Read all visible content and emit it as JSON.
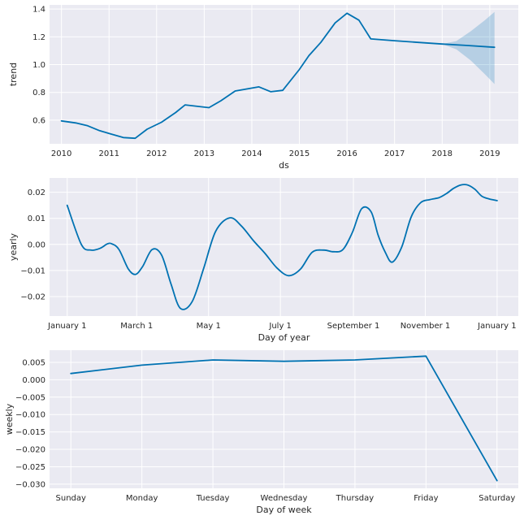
{
  "chart_data": [
    {
      "type": "line",
      "xlabel": "ds",
      "ylabel": "trend",
      "x_ticks": [
        "2010",
        "2011",
        "2012",
        "2013",
        "2014",
        "2015",
        "2016",
        "2017",
        "2018",
        "2019"
      ],
      "y_ticks": [
        "0.6",
        "0.8",
        "1.0",
        "1.2",
        "1.4"
      ],
      "xlim": [
        2009.75,
        2019.6
      ],
      "ylim": [
        0.43,
        1.43
      ],
      "grid": true,
      "color": "#0072b2",
      "x": [
        2010.0,
        2010.3,
        2010.55,
        2010.8,
        2011.0,
        2011.3,
        2011.55,
        2011.8,
        2012.1,
        2012.4,
        2012.6,
        2013.1,
        2013.35,
        2013.65,
        2014.15,
        2014.4,
        2014.65,
        2015.0,
        2015.2,
        2015.45,
        2015.75,
        2016.0,
        2016.25,
        2016.5,
        2017.0,
        2017.5,
        2018.0,
        2018.5,
        2019.1
      ],
      "y": [
        0.595,
        0.58,
        0.56,
        0.525,
        0.505,
        0.475,
        0.47,
        0.535,
        0.585,
        0.655,
        0.71,
        0.69,
        0.74,
        0.81,
        0.84,
        0.805,
        0.815,
        0.965,
        1.065,
        1.16,
        1.3,
        1.37,
        1.32,
        1.185,
        1.172,
        1.16,
        1.148,
        1.138,
        1.125
      ],
      "band": {
        "x": [
          2018.0,
          2018.3,
          2018.6,
          2018.9,
          2019.1
        ],
        "lower": [
          1.148,
          1.11,
          1.03,
          0.93,
          0.86
        ],
        "upper": [
          1.148,
          1.17,
          1.24,
          1.32,
          1.38
        ]
      }
    },
    {
      "type": "line",
      "xlabel": "Day of year",
      "ylabel": "yearly",
      "x_ticks": [
        "January 1",
        "March 1",
        "May 1",
        "July 1",
        "September 1",
        "November 1",
        "January 1"
      ],
      "x_tick_values": [
        0,
        59,
        120,
        181,
        243,
        304,
        365
      ],
      "y_ticks": [
        "−0.02",
        "−0.01",
        "0.00",
        "0.01",
        "0.02"
      ],
      "y_tick_values": [
        -0.02,
        -0.01,
        0.0,
        0.01,
        0.02
      ],
      "xlim": [
        -15,
        383
      ],
      "ylim": [
        -0.0275,
        0.0255
      ],
      "grid": true,
      "color": "#0072b2",
      "x": [
        0,
        12,
        20,
        28,
        34,
        38,
        44,
        52,
        58,
        64,
        72,
        80,
        88,
        96,
        106,
        116,
        126,
        138,
        148,
        158,
        168,
        178,
        188,
        198,
        208,
        218,
        226,
        234,
        242,
        250,
        258,
        264,
        270,
        276,
        284,
        292,
        300,
        308,
        316,
        322,
        328,
        334,
        340,
        346,
        352,
        358,
        365
      ],
      "y": [
        0.015,
        0.0,
        -0.0022,
        -0.0015,
        0.0002,
        0.0002,
        -0.002,
        -0.0095,
        -0.0115,
        -0.0085,
        -0.002,
        -0.004,
        -0.015,
        -0.0245,
        -0.022,
        -0.009,
        0.005,
        0.0102,
        0.007,
        0.0015,
        -0.0035,
        -0.009,
        -0.012,
        -0.0095,
        -0.003,
        -0.0022,
        -0.0028,
        -0.002,
        0.0045,
        0.0137,
        0.0125,
        0.0035,
        -0.003,
        -0.0068,
        -0.001,
        0.0105,
        0.016,
        0.0172,
        0.018,
        0.0195,
        0.0215,
        0.0228,
        0.0228,
        0.0212,
        0.0185,
        0.0175,
        0.0168
      ]
    },
    {
      "type": "line",
      "xlabel": "Day of week",
      "ylabel": "weekly",
      "categories": [
        "Sunday",
        "Monday",
        "Tuesday",
        "Wednesday",
        "Thursday",
        "Friday",
        "Saturday"
      ],
      "values": [
        0.0018,
        0.0042,
        0.0057,
        0.0053,
        0.0057,
        0.0068,
        -0.029
      ],
      "y_ticks": [
        "0.005",
        "0.000",
        "−0.005",
        "−0.010",
        "−0.015",
        "−0.020",
        "−0.025",
        "−0.030"
      ],
      "y_tick_values": [
        0.005,
        0.0,
        -0.005,
        -0.01,
        -0.015,
        -0.02,
        -0.025,
        -0.03
      ],
      "xlim": [
        -0.3,
        6.3
      ],
      "ylim": [
        -0.0312,
        0.0085
      ],
      "grid": true,
      "color": "#0072b2"
    }
  ]
}
